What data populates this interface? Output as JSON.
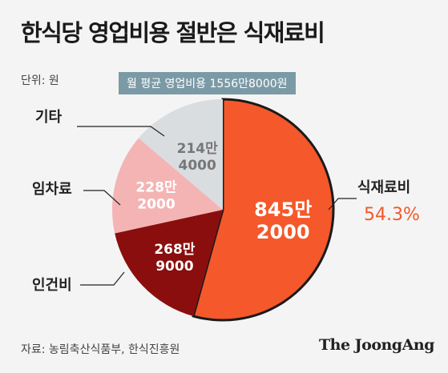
{
  "title": "한식당 영업비용 절반은 식재료비",
  "unit": "단위: 원",
  "total_badge": "월 평균 영업비용 1556만8000원",
  "source": "자료: 농림축산식품부, 한식진흥원",
  "logo": "The JoongAng",
  "colors": {
    "food": "#f4582b",
    "labor": "#8b0e0e",
    "rent": "#f4b4b4",
    "other": "#d9dde0",
    "badge": "#7b9aa6"
  },
  "chart_data": {
    "type": "pie",
    "title": "한식당 영업비용 절반은 식재료비",
    "unit": "원",
    "total": "1556만8000",
    "slices": [
      {
        "name": "식재료비",
        "value": 8452000,
        "label_line1": "845만",
        "label_line2": "2000",
        "percent_label": "54.3%"
      },
      {
        "name": "인건비",
        "value": 2689000,
        "label_line1": "268만",
        "label_line2": "9000"
      },
      {
        "name": "임차료",
        "value": 2282000,
        "label_line1": "228만",
        "label_line2": "2000"
      },
      {
        "name": "기타",
        "value": 2144000,
        "label_line1": "214만",
        "label_line2": "4000"
      }
    ]
  }
}
